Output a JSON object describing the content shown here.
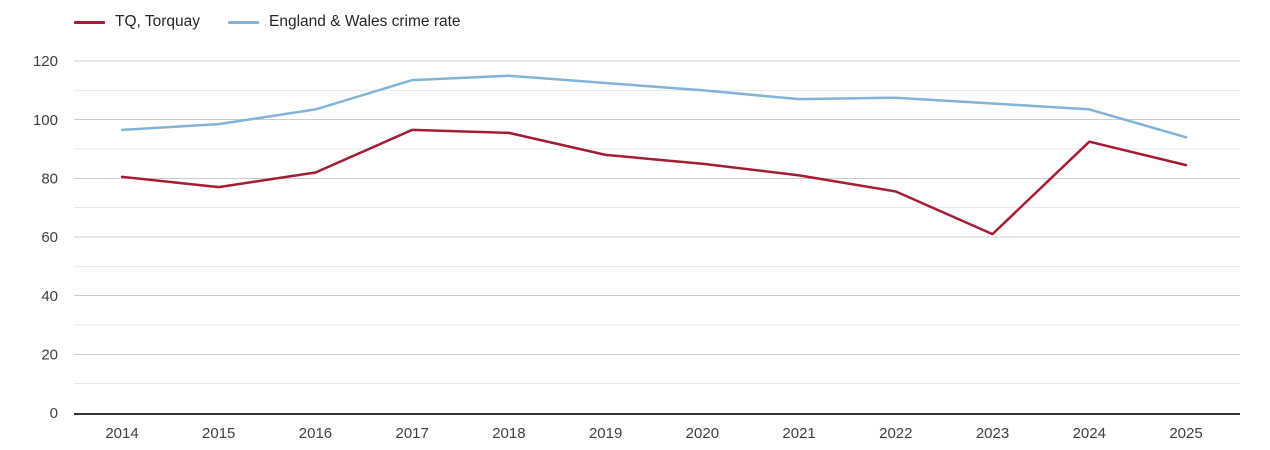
{
  "chart_data": {
    "type": "line",
    "title": "",
    "xlabel": "",
    "ylabel": "",
    "x": [
      2014,
      2015,
      2016,
      2017,
      2018,
      2019,
      2020,
      2021,
      2022,
      2023,
      2024,
      2025
    ],
    "series": [
      {
        "name": "TQ, Torquay",
        "color": "#a41c34",
        "values": [
          80.5,
          77,
          82,
          96.5,
          95.5,
          88,
          85,
          81,
          75.5,
          61,
          92.5,
          84.5
        ]
      },
      {
        "name": "England & Wales crime rate",
        "color": "#82b4d8",
        "values": [
          96.5,
          98.5,
          103.5,
          113.5,
          115,
          112.5,
          110,
          107,
          107.5,
          105.5,
          103.5,
          94
        ]
      }
    ],
    "ylim": [
      0,
      120
    ],
    "yticks": [
      0,
      20,
      40,
      60,
      80,
      100,
      120
    ],
    "grid": "horizontal lines every 10 units, darker lines every 20 (labeled)",
    "legend_position": "top-left"
  },
  "colors": {
    "grid_major": "#cccccc",
    "grid_minor": "#e8e8e8",
    "axis_line": "#333333",
    "tick_text": "#404040"
  }
}
